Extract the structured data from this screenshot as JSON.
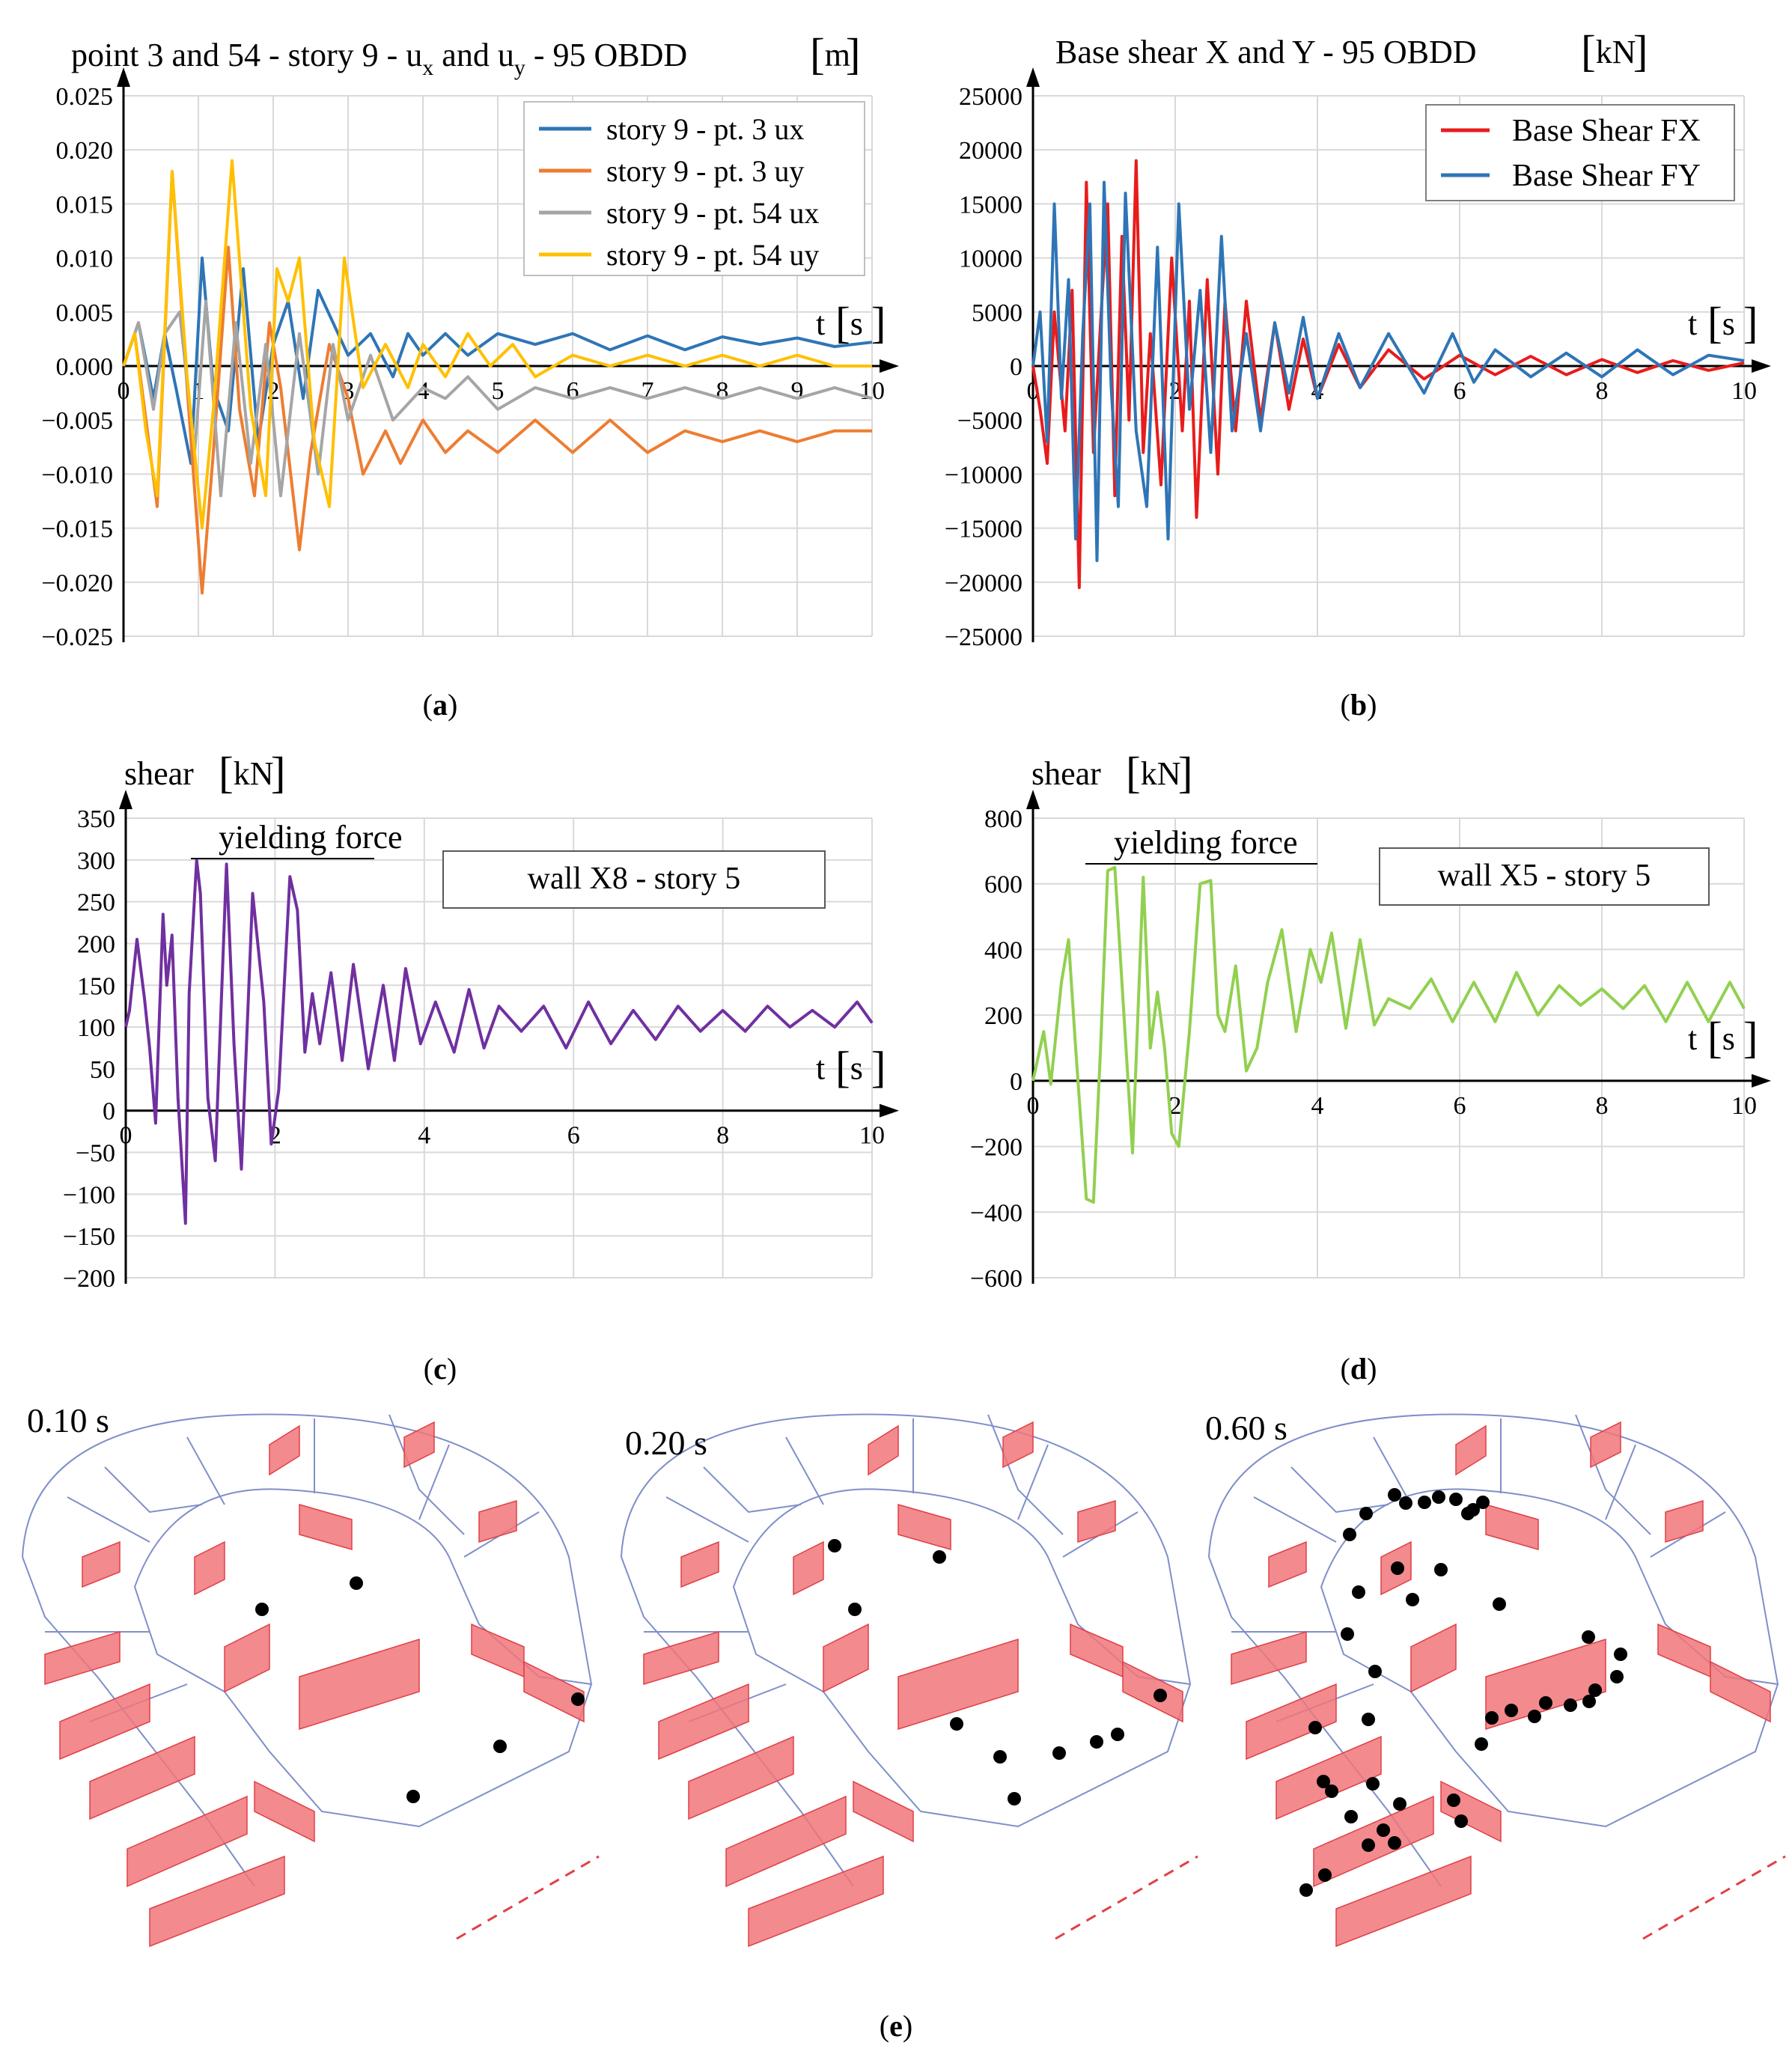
{
  "captions": {
    "a": {
      "open": "(",
      "letter": "a",
      "close": ")"
    },
    "b": {
      "open": "(",
      "letter": "b",
      "close": ")"
    },
    "c": {
      "open": "(",
      "letter": "c",
      "close": ")"
    },
    "d": {
      "open": "(",
      "letter": "d",
      "close": ")"
    },
    "e": {
      "open": "(",
      "letter": "e",
      "close": ")"
    }
  },
  "chart_data": [
    {
      "id": "a",
      "type": "line",
      "title": "point 3 and 54 - story 9 - u",
      "title_sub1": "x",
      "title_mid": " and u",
      "title_sub2": "y",
      "title_tail": " - 95 OBDD",
      "title_unit": "m",
      "xlabel": "t",
      "xunit": "s",
      "xlim": [
        0,
        10
      ],
      "ylim": [
        -0.025,
        0.025
      ],
      "x_ticks": [
        "0",
        "1",
        "2",
        "3",
        "4",
        "5",
        "6",
        "7",
        "8",
        "9",
        "10"
      ],
      "y_ticks": [
        "0.025",
        "0.020",
        "0.015",
        "0.010",
        "0.005",
        "0.000",
        "−0.005",
        "−0.010",
        "−0.015",
        "−0.020",
        "−0.025"
      ],
      "legend_position": "top-right",
      "series": [
        {
          "name": "story 9 - pt. 3 ux",
          "color": "#2e75b6",
          "x": [
            0,
            0.2,
            0.4,
            0.55,
            0.7,
            0.9,
            1.05,
            1.2,
            1.4,
            1.6,
            1.8,
            2.0,
            2.2,
            2.4,
            2.6,
            2.8,
            3.0,
            3.3,
            3.6,
            3.8,
            4.0,
            4.3,
            4.6,
            5.0,
            5.5,
            6.0,
            6.5,
            7.0,
            7.5,
            8.0,
            8.5,
            9.0,
            9.5,
            10.0
          ],
          "y": [
            0,
            0.004,
            -0.003,
            0.003,
            -0.002,
            -0.009,
            0.01,
            -0.002,
            -0.006,
            0.009,
            -0.007,
            0.002,
            0.006,
            -0.003,
            0.007,
            0.004,
            0.001,
            0.003,
            -0.001,
            0.003,
            0.001,
            0.003,
            0.001,
            0.003,
            0.002,
            0.003,
            0.0015,
            0.0028,
            0.0015,
            0.0027,
            0.002,
            0.0026,
            0.0018,
            0.0022
          ]
        },
        {
          "name": "story 9 - pt. 3 uy",
          "color": "#ed7d31",
          "x": [
            0,
            0.15,
            0.3,
            0.45,
            0.65,
            0.85,
            1.05,
            1.2,
            1.4,
            1.55,
            1.75,
            1.95,
            2.1,
            2.35,
            2.5,
            2.75,
            3.0,
            3.2,
            3.5,
            3.7,
            4.0,
            4.3,
            4.6,
            5.0,
            5.5,
            6.0,
            6.5,
            7.0,
            7.5,
            8.0,
            8.5,
            9.0,
            9.5,
            10.0
          ],
          "y": [
            0,
            0.003,
            -0.005,
            -0.013,
            0.018,
            -0.002,
            -0.021,
            -0.008,
            0.011,
            -0.004,
            -0.012,
            0.004,
            -0.002,
            -0.017,
            -0.008,
            0.002,
            -0.003,
            -0.01,
            -0.006,
            -0.009,
            -0.005,
            -0.008,
            -0.006,
            -0.008,
            -0.005,
            -0.008,
            -0.005,
            -0.008,
            -0.006,
            -0.007,
            -0.006,
            -0.007,
            -0.006,
            -0.006
          ]
        },
        {
          "name": "story 9 - pt. 54 ux",
          "color": "#a5a5a5",
          "x": [
            0,
            0.2,
            0.4,
            0.55,
            0.75,
            0.95,
            1.1,
            1.3,
            1.5,
            1.7,
            1.9,
            2.1,
            2.35,
            2.6,
            2.8,
            3.0,
            3.3,
            3.6,
            4.0,
            4.3,
            4.6,
            5.0,
            5.5,
            6.0,
            6.5,
            7.0,
            7.5,
            8.0,
            8.5,
            9.0,
            9.5,
            10.0
          ],
          "y": [
            0,
            0.004,
            -0.004,
            0.003,
            0.005,
            -0.008,
            0.006,
            -0.012,
            0.004,
            -0.009,
            0.002,
            -0.012,
            0.003,
            -0.01,
            0.002,
            -0.005,
            0.001,
            -0.005,
            -0.002,
            -0.003,
            -0.001,
            -0.004,
            -0.002,
            -0.003,
            -0.002,
            -0.003,
            -0.002,
            -0.003,
            -0.002,
            -0.003,
            -0.002,
            -0.003
          ]
        },
        {
          "name": "story 9 - pt. 54 uy",
          "color": "#ffc000",
          "x": [
            0,
            0.15,
            0.3,
            0.45,
            0.65,
            0.85,
            1.05,
            1.2,
            1.45,
            1.7,
            1.9,
            2.05,
            2.2,
            2.35,
            2.55,
            2.75,
            2.95,
            3.2,
            3.5,
            3.8,
            4.0,
            4.3,
            4.6,
            4.9,
            5.2,
            5.5,
            6.0,
            6.5,
            7.0,
            7.5,
            8.0,
            8.5,
            9.0,
            9.5,
            10.0
          ],
          "y": [
            0,
            0.003,
            -0.006,
            -0.012,
            0.018,
            -0.001,
            -0.015,
            -0.004,
            0.019,
            -0.004,
            -0.012,
            0.009,
            0.006,
            0.01,
            -0.007,
            -0.013,
            0.01,
            -0.002,
            0.002,
            -0.002,
            0.002,
            -0.001,
            0.003,
            0.0,
            0.002,
            -0.001,
            0.001,
            0.0,
            0.001,
            0.0,
            0.001,
            0.0,
            0.001,
            0.0,
            0.0
          ]
        }
      ]
    },
    {
      "id": "b",
      "type": "line",
      "title": "Base shear X and Y - 95 OBDD",
      "title_unit": "kN",
      "xlabel": "t",
      "xunit": "s",
      "xlim": [
        0,
        10
      ],
      "ylim": [
        -25000,
        25000
      ],
      "x_ticks": [
        "0",
        "2",
        "4",
        "6",
        "8",
        "10"
      ],
      "y_ticks": [
        "25000",
        "20000",
        "15000",
        "10000",
        "5000",
        "0",
        "−5000",
        "−10000",
        "−15000",
        "−20000",
        "−25000"
      ],
      "legend_position": "top-right",
      "series": [
        {
          "name": "Base Shear FX",
          "color": "#e81c1c",
          "x": [
            0,
            0.1,
            0.2,
            0.3,
            0.45,
            0.55,
            0.65,
            0.75,
            0.85,
            0.95,
            1.05,
            1.15,
            1.25,
            1.35,
            1.45,
            1.55,
            1.65,
            1.8,
            1.95,
            2.1,
            2.2,
            2.3,
            2.45,
            2.6,
            2.7,
            2.85,
            3.0,
            3.2,
            3.4,
            3.6,
            3.8,
            4.0,
            4.3,
            4.6,
            5.0,
            5.5,
            6.0,
            6.5,
            7.0,
            7.5,
            8.0,
            8.5,
            9.0,
            9.5,
            10.0
          ],
          "y": [
            0,
            -4000,
            -9000,
            5000,
            -6000,
            7000,
            -20500,
            17000,
            -8000,
            4000,
            15000,
            -12000,
            12000,
            -5000,
            19000,
            -8000,
            3000,
            -11000,
            10000,
            -6000,
            6000,
            -14000,
            8000,
            -10000,
            6000,
            -6000,
            6000,
            -5000,
            4000,
            -4000,
            2500,
            -3000,
            2000,
            -2000,
            1500,
            -1200,
            1000,
            -800,
            900,
            -800,
            600,
            -600,
            500,
            -400,
            300
          ]
        },
        {
          "name": "Base Shear FY",
          "color": "#2e75b6",
          "x": [
            0,
            0.1,
            0.2,
            0.3,
            0.4,
            0.5,
            0.6,
            0.7,
            0.8,
            0.9,
            1.0,
            1.1,
            1.2,
            1.3,
            1.45,
            1.6,
            1.75,
            1.9,
            2.05,
            2.2,
            2.35,
            2.5,
            2.65,
            2.8,
            3.0,
            3.2,
            3.4,
            3.6,
            3.8,
            4.0,
            4.3,
            4.6,
            5.0,
            5.5,
            5.9,
            6.2,
            6.5,
            7.0,
            7.5,
            8.0,
            8.5,
            9.0,
            9.5,
            10.0
          ],
          "y": [
            0,
            5000,
            -7000,
            15000,
            -3000,
            8000,
            -16000,
            3000,
            15000,
            -18000,
            17000,
            -2000,
            -13000,
            16000,
            -6000,
            -13000,
            11000,
            -16000,
            15000,
            -4000,
            7000,
            -8000,
            12000,
            -6000,
            3000,
            -6000,
            4000,
            -2500,
            4500,
            -3000,
            3000,
            -2000,
            3000,
            -2500,
            3000,
            -1500,
            1500,
            -1000,
            1200,
            -1000,
            1500,
            -800,
            1000,
            500
          ]
        }
      ]
    },
    {
      "id": "c",
      "type": "line",
      "ylabel": "shear",
      "yunit": "kN",
      "xlabel": "t",
      "xunit": "s",
      "xlim": [
        0,
        10
      ],
      "ylim": [
        -200,
        350
      ],
      "x_ticks": [
        "0",
        "2",
        "4",
        "6",
        "8",
        "10"
      ],
      "y_ticks": [
        "350",
        "300",
        "250",
        "200",
        "150",
        "100",
        "50",
        "0",
        "−50",
        "−100",
        "−150",
        "−200"
      ],
      "annotation": "yielding force",
      "box_label": "wall X8 - story 5",
      "series": [
        {
          "name": "wall X8 - story 5",
          "color": "#7030a0",
          "x": [
            0,
            0.05,
            0.15,
            0.25,
            0.32,
            0.4,
            0.5,
            0.55,
            0.62,
            0.7,
            0.8,
            0.85,
            0.95,
            1.0,
            1.1,
            1.2,
            1.35,
            1.45,
            1.55,
            1.7,
            1.85,
            1.95,
            2.05,
            2.2,
            2.3,
            2.4,
            2.5,
            2.6,
            2.75,
            2.9,
            3.05,
            3.25,
            3.45,
            3.6,
            3.75,
            3.95,
            4.15,
            4.4,
            4.6,
            4.8,
            5.0,
            5.3,
            5.6,
            5.9,
            6.2,
            6.5,
            6.8,
            7.1,
            7.4,
            7.7,
            8.0,
            8.3,
            8.6,
            8.9,
            9.2,
            9.5,
            9.8,
            10.0
          ],
          "y": [
            100,
            120,
            205,
            135,
            75,
            -15,
            235,
            150,
            210,
            15,
            -135,
            140,
            300,
            260,
            15,
            -60,
            295,
            80,
            -70,
            260,
            130,
            -40,
            25,
            280,
            240,
            70,
            140,
            80,
            165,
            60,
            175,
            50,
            150,
            60,
            170,
            80,
            130,
            70,
            145,
            75,
            125,
            95,
            125,
            75,
            130,
            80,
            120,
            85,
            125,
            95,
            120,
            95,
            125,
            100,
            120,
            100,
            130,
            105
          ]
        }
      ]
    },
    {
      "id": "d",
      "type": "line",
      "ylabel": "shear",
      "yunit": "kN",
      "xlabel": "t",
      "xunit": "s",
      "xlim": [
        0,
        10
      ],
      "ylim": [
        -600,
        800
      ],
      "x_ticks": [
        "0",
        "2",
        "4",
        "6",
        "8",
        "10"
      ],
      "y_ticks": [
        "800",
        "600",
        "400",
        "200",
        "0",
        "−200",
        "−400",
        "−600"
      ],
      "annotation": "yielding force",
      "box_label": "wall X5 - story 5",
      "series": [
        {
          "name": "wall X5 - story 5",
          "color": "#92d050",
          "x": [
            0,
            0.15,
            0.25,
            0.4,
            0.5,
            0.6,
            0.75,
            0.85,
            0.95,
            1.05,
            1.15,
            1.25,
            1.4,
            1.55,
            1.65,
            1.75,
            1.85,
            1.95,
            2.05,
            2.2,
            2.35,
            2.5,
            2.6,
            2.7,
            2.85,
            3.0,
            3.15,
            3.3,
            3.5,
            3.7,
            3.9,
            4.05,
            4.2,
            4.4,
            4.6,
            4.8,
            5.0,
            5.3,
            5.6,
            5.9,
            6.2,
            6.5,
            6.8,
            7.1,
            7.4,
            7.7,
            8.0,
            8.3,
            8.6,
            8.9,
            9.2,
            9.5,
            9.8,
            10.0
          ],
          "y": [
            0,
            150,
            -10,
            300,
            430,
            100,
            -360,
            -370,
            100,
            640,
            650,
            300,
            -220,
            620,
            100,
            270,
            100,
            -160,
            -200,
            150,
            600,
            610,
            200,
            150,
            350,
            30,
            100,
            300,
            460,
            150,
            400,
            300,
            450,
            160,
            430,
            170,
            250,
            220,
            310,
            180,
            300,
            180,
            330,
            200,
            290,
            230,
            280,
            220,
            290,
            180,
            300,
            180,
            300,
            220
          ]
        }
      ]
    }
  ],
  "panel_e": {
    "snapshots": [
      {
        "label": "0.10 s"
      },
      {
        "label": "0.20 s"
      },
      {
        "label": "0.60 s"
      }
    ]
  }
}
